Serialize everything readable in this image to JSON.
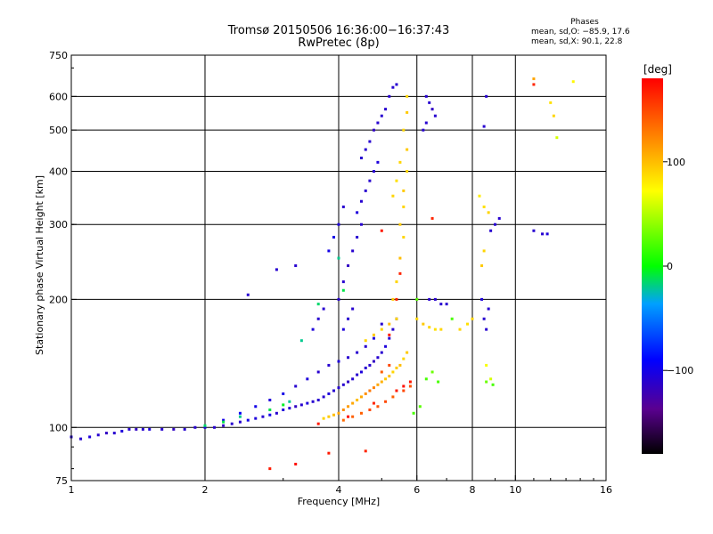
{
  "chart_data": {
    "type": "scatter",
    "title": "Tromsø 20150506 16:36:00−16:37:43",
    "subtitle": "RwPretec (8p)",
    "xlabel": "Frequency [MHz]",
    "ylabel": "Stationary phase Virtual Height [km]",
    "x_scale": "log",
    "y_scale": "log",
    "xlim": [
      1,
      16
    ],
    "ylim": [
      75,
      750
    ],
    "x_ticks": [
      1,
      2,
      4,
      6,
      8,
      10,
      16
    ],
    "x_tick_labels": [
      "1",
      "2",
      "4",
      "6",
      "8",
      "10",
      "16"
    ],
    "y_ticks": [
      75,
      100,
      200,
      300,
      400,
      500,
      600,
      750
    ],
    "y_tick_labels": [
      "75",
      "100",
      "200",
      "300",
      "400",
      "500",
      "600",
      "750"
    ],
    "grid": true,
    "colorbar": {
      "label": "[deg]",
      "range": [
        -180,
        180
      ],
      "ticks": [
        100,
        0,
        -100
      ],
      "tick_labels": [
        "100",
        "0",
        "−100"
      ]
    },
    "stats": {
      "header": "Phases",
      "line1": "mean, sd,O: −85.9, 17.6",
      "line2": "mean, sd,X:  90.1, 22.8"
    },
    "series": [
      {
        "points": [
          [
            1.0,
            95,
            -110
          ],
          [
            1.05,
            94,
            -110
          ],
          [
            1.1,
            95,
            -105
          ],
          [
            1.15,
            96,
            -110
          ],
          [
            1.2,
            97,
            -115
          ],
          [
            1.25,
            97,
            -110
          ],
          [
            1.3,
            98,
            -105
          ],
          [
            1.35,
            99,
            -110
          ],
          [
            1.4,
            99,
            -115
          ],
          [
            1.45,
            99,
            -110
          ],
          [
            1.5,
            99,
            -105
          ],
          [
            1.6,
            99,
            -110
          ],
          [
            1.7,
            99,
            -115
          ],
          [
            1.8,
            99,
            -110
          ],
          [
            1.9,
            100,
            -110
          ],
          [
            2.0,
            100,
            -105
          ],
          [
            2.1,
            100,
            -110
          ],
          [
            2.2,
            101,
            -115
          ],
          [
            2.3,
            102,
            -110
          ],
          [
            2.4,
            103,
            -110
          ],
          [
            2.5,
            104,
            -100
          ],
          [
            2.6,
            105,
            -105
          ],
          [
            2.7,
            106,
            -110
          ],
          [
            2.8,
            107,
            -100
          ],
          [
            2.9,
            108,
            -110
          ],
          [
            3.0,
            110,
            -105
          ],
          [
            3.1,
            111,
            -110
          ],
          [
            3.2,
            112,
            -115
          ],
          [
            3.3,
            113,
            -110
          ],
          [
            3.4,
            114,
            -105
          ],
          [
            3.5,
            115,
            -110
          ],
          [
            3.6,
            116,
            -110
          ],
          [
            3.7,
            118,
            -110
          ],
          [
            3.8,
            120,
            -105
          ],
          [
            3.9,
            122,
            -110
          ],
          [
            4.0,
            124,
            -110
          ],
          [
            4.1,
            126,
            -110
          ],
          [
            4.2,
            128,
            -115
          ],
          [
            4.3,
            130,
            -110
          ],
          [
            4.4,
            133,
            -110
          ],
          [
            4.5,
            135,
            -105
          ],
          [
            4.6,
            138,
            -110
          ],
          [
            4.7,
            140,
            -110
          ],
          [
            4.8,
            143,
            -115
          ],
          [
            4.9,
            146,
            -110
          ],
          [
            5.0,
            150,
            -110
          ],
          [
            5.1,
            155,
            -105
          ],
          [
            5.2,
            162,
            -110
          ],
          [
            5.3,
            170,
            -110
          ],
          [
            5.4,
            180,
            -115
          ],
          [
            2.2,
            104,
            -100
          ],
          [
            2.4,
            108,
            -95
          ],
          [
            2.6,
            112,
            -100
          ],
          [
            2.8,
            116,
            -105
          ],
          [
            3.0,
            120,
            -100
          ],
          [
            3.2,
            125,
            -110
          ],
          [
            3.4,
            130,
            -105
          ],
          [
            3.6,
            135,
            -110
          ],
          [
            3.8,
            140,
            -110
          ],
          [
            4.0,
            143,
            -105
          ],
          [
            4.2,
            146,
            -110
          ],
          [
            4.4,
            150,
            -110
          ],
          [
            4.6,
            155,
            -110
          ],
          [
            4.8,
            162,
            -105
          ],
          [
            5.0,
            175,
            -110
          ],
          [
            4.0,
            200,
            -110
          ],
          [
            4.1,
            220,
            -110
          ],
          [
            4.2,
            240,
            -115
          ],
          [
            4.3,
            260,
            -110
          ],
          [
            4.4,
            280,
            -110
          ],
          [
            4.5,
            300,
            -110
          ],
          [
            4.4,
            320,
            -105
          ],
          [
            4.5,
            340,
            -110
          ],
          [
            4.6,
            360,
            -110
          ],
          [
            4.7,
            380,
            -110
          ],
          [
            4.8,
            400,
            -110
          ],
          [
            4.9,
            420,
            -105
          ],
          [
            4.5,
            430,
            -110
          ],
          [
            4.6,
            450,
            -110
          ],
          [
            4.7,
            470,
            -110
          ],
          [
            4.8,
            500,
            -115
          ],
          [
            4.9,
            520,
            -110
          ],
          [
            5.0,
            540,
            -110
          ],
          [
            5.1,
            560,
            -110
          ],
          [
            5.2,
            600,
            -110
          ],
          [
            5.3,
            630,
            -110
          ],
          [
            5.4,
            640,
            -110
          ],
          [
            3.9,
            280,
            -100
          ],
          [
            4.0,
            300,
            -105
          ],
          [
            3.8,
            260,
            -100
          ],
          [
            4.1,
            330,
            -110
          ],
          [
            3.6,
            180,
            -110
          ],
          [
            3.7,
            190,
            -110
          ],
          [
            3.5,
            170,
            -105
          ],
          [
            4.2,
            180,
            -110
          ],
          [
            4.3,
            190,
            -110
          ],
          [
            4.1,
            170,
            -105
          ],
          [
            6.3,
            600,
            -110
          ],
          [
            6.4,
            580,
            -110
          ],
          [
            6.5,
            560,
            -115
          ],
          [
            6.6,
            540,
            -110
          ],
          [
            6.3,
            520,
            -110
          ],
          [
            6.2,
            500,
            -110
          ],
          [
            6.4,
            200,
            -110
          ],
          [
            6.6,
            200,
            -110
          ],
          [
            6.8,
            195,
            -110
          ],
          [
            7.0,
            195,
            -110
          ],
          [
            8.5,
            180,
            -110
          ],
          [
            8.6,
            170,
            -110
          ],
          [
            8.7,
            190,
            -110
          ],
          [
            8.4,
            200,
            -105
          ],
          [
            8.8,
            290,
            -110
          ],
          [
            9.0,
            300,
            -110
          ],
          [
            9.2,
            310,
            -110
          ],
          [
            11.0,
            290,
            -110
          ],
          [
            11.5,
            285,
            -110
          ],
          [
            11.8,
            285,
            -105
          ],
          [
            8.5,
            510,
            -110
          ],
          [
            8.6,
            600,
            -110
          ],
          [
            3.2,
            240,
            -110
          ],
          [
            2.9,
            235,
            -110
          ],
          [
            2.5,
            205,
            -110
          ]
        ]
      },
      {
        "points": [
          [
            3.7,
            105,
            90
          ],
          [
            3.8,
            106,
            95
          ],
          [
            3.9,
            107,
            100
          ],
          [
            4.0,
            108,
            110
          ],
          [
            4.1,
            110,
            120
          ],
          [
            4.2,
            112,
            115
          ],
          [
            4.3,
            114,
            110
          ],
          [
            4.4,
            116,
            100
          ],
          [
            4.5,
            118,
            110
          ],
          [
            4.6,
            120,
            120
          ],
          [
            4.7,
            122,
            130
          ],
          [
            4.8,
            124,
            125
          ],
          [
            4.9,
            126,
            110
          ],
          [
            5.0,
            128,
            105
          ],
          [
            5.1,
            130,
            95
          ],
          [
            5.2,
            132,
            100
          ],
          [
            5.3,
            135,
            90
          ],
          [
            5.4,
            138,
            95
          ],
          [
            5.5,
            140,
            100
          ],
          [
            5.6,
            145,
            90
          ],
          [
            5.7,
            150,
            95
          ],
          [
            4.6,
            160,
            90
          ],
          [
            4.8,
            165,
            95
          ],
          [
            5.0,
            170,
            90
          ],
          [
            5.2,
            175,
            100
          ],
          [
            5.4,
            180,
            90
          ],
          [
            5.3,
            200,
            95
          ],
          [
            5.4,
            220,
            90
          ],
          [
            5.5,
            250,
            100
          ],
          [
            5.6,
            280,
            90
          ],
          [
            5.5,
            300,
            95
          ],
          [
            5.6,
            330,
            90
          ],
          [
            5.6,
            360,
            95
          ],
          [
            5.7,
            400,
            90
          ],
          [
            5.7,
            450,
            95
          ],
          [
            5.6,
            500,
            90
          ],
          [
            5.7,
            550,
            95
          ],
          [
            5.7,
            600,
            90
          ],
          [
            5.5,
            420,
            90
          ],
          [
            5.4,
            380,
            85
          ],
          [
            5.3,
            350,
            90
          ],
          [
            6.0,
            180,
            90
          ],
          [
            6.2,
            175,
            95
          ],
          [
            6.4,
            172,
            90
          ],
          [
            6.6,
            170,
            85
          ],
          [
            6.8,
            170,
            90
          ],
          [
            7.5,
            170,
            90
          ],
          [
            7.8,
            175,
            85
          ],
          [
            8.0,
            180,
            90
          ],
          [
            8.3,
            350,
            80
          ],
          [
            8.5,
            330,
            85
          ],
          [
            8.7,
            320,
            90
          ],
          [
            8.5,
            260,
            90
          ],
          [
            8.4,
            240,
            95
          ],
          [
            12.0,
            580,
            85
          ],
          [
            12.2,
            540,
            90
          ],
          [
            12.4,
            480,
            60
          ],
          [
            13.5,
            650,
            75
          ],
          [
            11.0,
            660,
            110
          ],
          [
            8.8,
            130,
            60
          ],
          [
            8.6,
            140,
            70
          ]
        ]
      },
      {
        "points": [
          [
            4.5,
            108,
            140
          ],
          [
            4.7,
            110,
            150
          ],
          [
            4.9,
            112,
            145
          ],
          [
            5.1,
            115,
            150
          ],
          [
            5.3,
            118,
            140
          ],
          [
            5.6,
            122,
            150
          ],
          [
            5.8,
            125,
            145
          ],
          [
            5.0,
            135,
            140
          ],
          [
            5.2,
            140,
            150
          ],
          [
            4.3,
            106,
            140
          ],
          [
            4.1,
            104,
            135
          ]
        ]
      },
      {
        "points": [
          [
            3.6,
            102,
            170
          ],
          [
            4.2,
            106,
            175
          ],
          [
            4.8,
            114,
            165
          ],
          [
            5.4,
            122,
            170
          ],
          [
            5.6,
            125,
            175
          ],
          [
            5.8,
            128,
            170
          ],
          [
            5.2,
            165,
            170
          ],
          [
            5.4,
            200,
            165
          ],
          [
            3.2,
            82,
            175
          ],
          [
            3.8,
            87,
            170
          ],
          [
            4.6,
            88,
            165
          ],
          [
            2.8,
            80,
            170
          ],
          [
            11.0,
            640,
            165
          ],
          [
            5.5,
            230,
            165
          ],
          [
            5.0,
            290,
            170
          ],
          [
            6.5,
            310,
            165
          ]
        ]
      },
      {
        "points": [
          [
            2.8,
            110,
            -10
          ],
          [
            3.0,
            113,
            -5
          ],
          [
            3.1,
            115,
            -20
          ],
          [
            2.4,
            106,
            -20
          ],
          [
            2.2,
            103,
            -10
          ],
          [
            2.0,
            101,
            -15
          ],
          [
            4.0,
            250,
            -20
          ],
          [
            4.1,
            210,
            -10
          ],
          [
            3.6,
            195,
            -15
          ],
          [
            3.3,
            160,
            -20
          ]
        ]
      },
      {
        "points": [
          [
            5.9,
            108,
            20
          ],
          [
            6.1,
            112,
            25
          ],
          [
            6.3,
            130,
            20
          ],
          [
            6.5,
            135,
            30
          ],
          [
            6.7,
            128,
            20
          ],
          [
            6.0,
            200,
            25
          ],
          [
            7.2,
            180,
            20
          ],
          [
            8.9,
            126,
            20
          ],
          [
            8.6,
            128,
            30
          ]
        ]
      }
    ]
  }
}
